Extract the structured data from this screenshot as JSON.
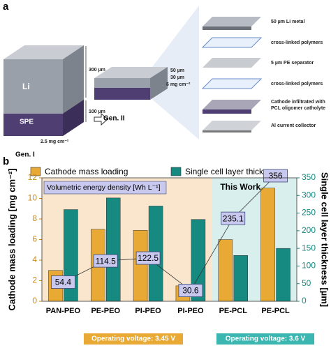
{
  "diagram": {
    "panel_label": "a",
    "gen1": {
      "name": "Gen. I",
      "top_layer": "Li",
      "bottom_layer": "SPE",
      "dims": [
        "300 µm",
        "100 µm"
      ],
      "loading": "2.5 mg cm⁻²"
    },
    "gen2": {
      "name": "Gen. II",
      "dims": [
        "50 µm",
        "30 µm"
      ],
      "loading": "6 mg cm⁻²"
    },
    "layers": [
      {
        "label": [
          "50 µm Li metal"
        ]
      },
      {
        "label": [
          "cross-linked polymers"
        ]
      },
      {
        "label": [
          "5 µm PE separator"
        ]
      },
      {
        "label": [
          "cross-linked polymers"
        ]
      },
      {
        "label": [
          "Cathode infiltrated with",
          "PCL oligomer catholyte"
        ]
      },
      {
        "label": [
          "Al current collector"
        ]
      }
    ]
  },
  "chart_data": {
    "type": "bar",
    "panel_label": "b",
    "categories": [
      "PAN-PEO",
      "PE-PEO",
      "PI-PEO",
      "PI-PEO",
      "PE-PCL",
      "PE-PCL"
    ],
    "series": [
      {
        "name": "Cathode mass loading",
        "color": "#e8a935",
        "values": [
          3.0,
          7.0,
          6.9,
          1.5,
          6.0,
          11.0
        ]
      },
      {
        "name": "Single cell layer thickness",
        "color": "#168a80",
        "axis": "y2",
        "values": [
          260,
          293,
          270,
          232,
          130,
          150
        ]
      }
    ],
    "energy_density": {
      "name": "Volumetric energy density [Wh L⁻¹]",
      "axis": "y2",
      "values": [
        54.4,
        114.5,
        122.5,
        30.6,
        235.1,
        356
      ]
    },
    "ylabel": "Cathode mass loading [mg cm⁻²]",
    "y2label": "Single cell layer thickness [µm]",
    "ylim": [
      0,
      12
    ],
    "yticks": [
      0,
      2,
      4,
      6,
      8,
      10,
      12
    ],
    "y2lim": [
      0,
      350
    ],
    "y2ticks": [
      0,
      50,
      100,
      150,
      200,
      250,
      300,
      350
    ],
    "annotations": {
      "this_work": "This Work",
      "voltage_left": "Operating voltage: 3.45 V",
      "voltage_right": "Operating voltage: 3.6 V"
    }
  }
}
